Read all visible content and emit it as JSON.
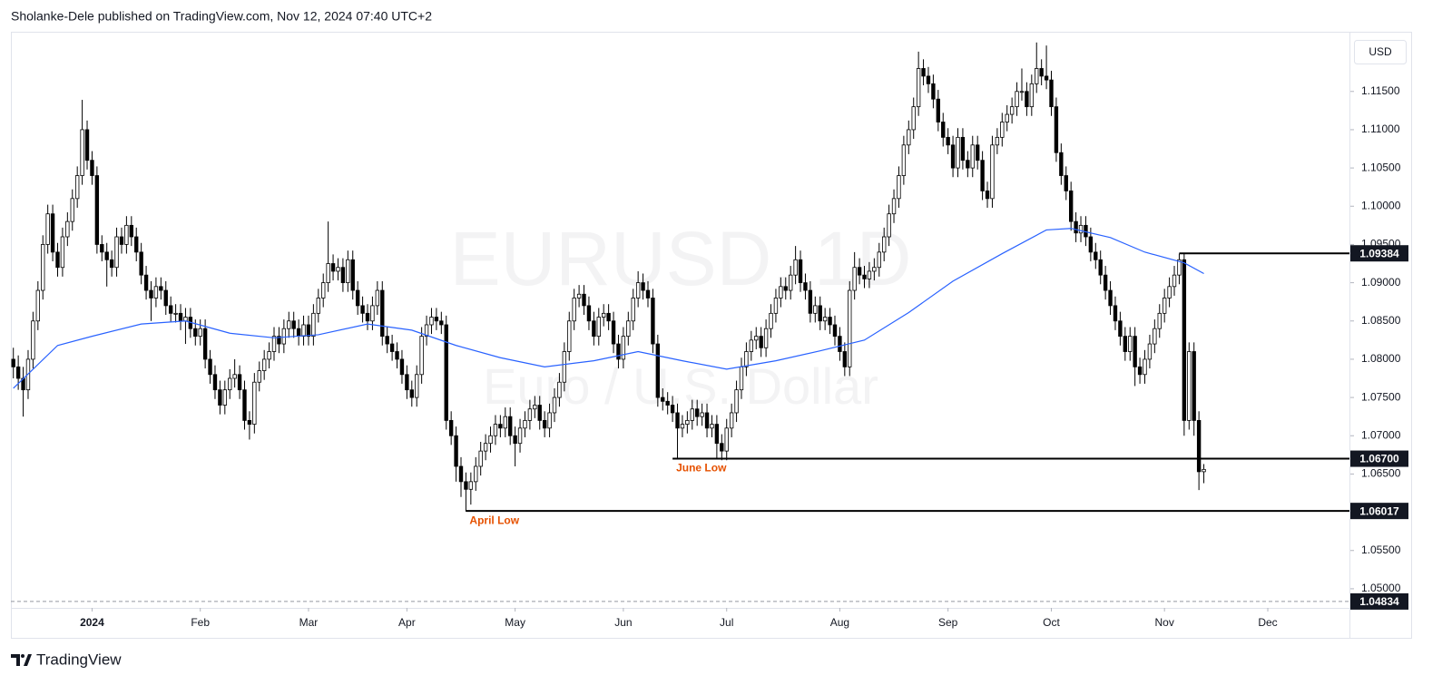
{
  "header": "Sholanke-Dele published on TradingView.com, Nov 12, 2024 07:40 UTC+2",
  "brand": "TradingView",
  "chart_data": {
    "type": "candlestick",
    "title": "EURUSD, 1D",
    "subtitle": "Euro / U.S. Dollar",
    "currency": "USD",
    "up_color": "#ffffff",
    "down_color": "#000000",
    "edge_color": "#000000",
    "xlim": [
      -0.5,
      271.6
    ],
    "xticks": [
      {
        "value": 16,
        "label": "2024"
      },
      {
        "value": 38,
        "label": "Feb"
      },
      {
        "value": 60,
        "label": "Mar"
      },
      {
        "value": 80,
        "label": "Apr"
      },
      {
        "value": 102,
        "label": "May"
      },
      {
        "value": 124,
        "label": "Jun"
      },
      {
        "value": 145,
        "label": "Jul"
      },
      {
        "value": 168,
        "label": "Aug"
      },
      {
        "value": 190,
        "label": "Sep"
      },
      {
        "value": 211,
        "label": "Oct"
      },
      {
        "value": 234,
        "label": "Nov"
      },
      {
        "value": 255,
        "label": "Dec"
      }
    ],
    "ylim": [
      1.0475,
      1.1228
    ],
    "yticks": [
      {
        "value": 1.115,
        "label": "1.11500"
      },
      {
        "value": 1.11,
        "label": "1.11000"
      },
      {
        "value": 1.105,
        "label": "1.10500"
      },
      {
        "value": 1.1,
        "label": "1.10000"
      },
      {
        "value": 1.095,
        "label": "1.09500"
      },
      {
        "value": 1.09,
        "label": "1.09000"
      },
      {
        "value": 1.085,
        "label": "1.08500"
      },
      {
        "value": 1.08,
        "label": "1.08000"
      },
      {
        "value": 1.075,
        "label": "1.07500"
      },
      {
        "value": 1.07,
        "label": "1.07000"
      },
      {
        "value": 1.065,
        "label": "1.06500"
      },
      {
        "value": 1.055,
        "label": "1.05500"
      },
      {
        "value": 1.05,
        "label": "1.05000"
      }
    ],
    "open": [
      1.08,
      1.079,
      1.0775,
      1.076,
      1.08,
      1.085,
      1.089,
      1.095,
      1.099,
      1.094,
      1.092,
      1.096,
      1.098,
      1.101,
      1.104,
      1.11,
      1.106,
      1.104,
      1.095,
      1.094,
      1.093,
      1.092,
      1.096,
      1.095,
      1.0975,
      1.096,
      1.094,
      1.091,
      1.089,
      1.088,
      1.0895,
      1.089,
      1.087,
      1.086,
      1.086,
      1.085,
      1.0855,
      1.084,
      1.083,
      1.084,
      1.08,
      1.078,
      1.076,
      1.074,
      1.076,
      1.0775,
      1.078,
      1.076,
      1.072,
      1.0715,
      1.077,
      1.0785,
      1.08,
      1.081,
      1.083,
      1.082,
      1.084,
      1.085,
      1.084,
      1.083,
      1.0845,
      1.083,
      1.086,
      1.088,
      1.09,
      1.0925,
      1.0915,
      1.092,
      1.09,
      1.093,
      1.089,
      1.087,
      1.086,
      1.085,
      1.087,
      1.089,
      1.083,
      1.082,
      1.081,
      1.08,
      1.078,
      1.076,
      1.075,
      1.078,
      1.083,
      1.0845,
      1.0855,
      1.085,
      1.0845,
      1.072,
      1.07,
      1.066,
      1.064,
      1.063,
      1.064,
      1.066,
      1.068,
      1.069,
      1.07,
      1.0715,
      1.071,
      1.0725,
      1.07,
      1.069,
      1.071,
      1.072,
      1.0735,
      1.074,
      1.072,
      1.071,
      1.073,
      1.075,
      1.077,
      1.081,
      1.085,
      1.088,
      1.0885,
      1.087,
      1.085,
      1.083,
      1.0855,
      1.086,
      1.085,
      1.082,
      1.08,
      1.083,
      1.085,
      1.088,
      1.09,
      1.089,
      1.088,
      1.082,
      1.075,
      1.0745,
      1.074,
      1.073,
      1.071,
      1.0715,
      1.072,
      1.0735,
      1.0725,
      1.073,
      1.071,
      1.0715,
      1.069,
      1.068,
      1.071,
      1.073,
      1.076,
      1.079,
      1.081,
      1.0825,
      1.083,
      1.0815,
      1.084,
      1.086,
      1.088,
      1.0895,
      1.089,
      1.091,
      1.093,
      1.09,
      1.089,
      1.086,
      1.087,
      1.085,
      1.0855,
      1.0845,
      1.083,
      1.081,
      1.079,
      1.089,
      1.092,
      1.091,
      1.0905,
      1.0915,
      1.092,
      1.094,
      1.096,
      1.099,
      1.101,
      1.104,
      1.108,
      1.11,
      1.113,
      1.118,
      1.117,
      1.116,
      1.114,
      1.111,
      1.109,
      1.108,
      1.105,
      1.109,
      1.106,
      1.105,
      1.108,
      1.106,
      1.102,
      1.101,
      1.108,
      1.109,
      1.111,
      1.112,
      1.113,
      1.115,
      1.115,
      1.113,
      1.116,
      1.118,
      1.117,
      1.1165,
      1.113,
      1.107,
      1.104,
      1.102,
      1.098,
      1.0965,
      1.0975,
      1.096,
      1.094,
      1.093,
      1.091,
      1.089,
      1.087,
      1.085,
      1.083,
      1.081,
      1.083,
      1.079,
      1.078,
      1.08,
      1.082,
      1.084,
      1.086,
      1.088,
      1.0895,
      1.091,
      1.093,
      1.072,
      1.081,
      1.072,
      1.0653
    ],
    "high": [
      1.0815,
      1.0805,
      1.079,
      1.0812,
      1.0862,
      1.0902,
      1.0962,
      1.1002,
      1.1002,
      1.0952,
      1.0972,
      1.0992,
      1.1022,
      1.1052,
      1.1139,
      1.1112,
      1.1072,
      1.1052,
      1.0962,
      1.0952,
      1.0942,
      1.0972,
      1.0972,
      1.0987,
      1.0987,
      1.0972,
      1.0952,
      1.0922,
      1.0902,
      1.0907,
      1.0907,
      1.0902,
      1.0882,
      1.0872,
      1.0872,
      1.0867,
      1.0867,
      1.0852,
      1.0852,
      1.0852,
      1.0812,
      1.0792,
      1.0772,
      1.0772,
      1.0787,
      1.08,
      1.0792,
      1.0772,
      1.0732,
      1.0782,
      1.0797,
      1.0812,
      1.0822,
      1.0842,
      1.0842,
      1.0852,
      1.0862,
      1.0862,
      1.0852,
      1.0857,
      1.0857,
      1.0872,
      1.0892,
      1.0912,
      1.098,
      1.0937,
      1.0932,
      1.0932,
      1.0942,
      1.0942,
      1.0902,
      1.0882,
      1.0872,
      1.0882,
      1.0902,
      1.0902,
      1.0842,
      1.0832,
      1.0822,
      1.0812,
      1.0792,
      1.0772,
      1.0792,
      1.0842,
      1.0857,
      1.0867,
      1.0867,
      1.0862,
      1.0857,
      1.0732,
      1.0712,
      1.0672,
      1.0652,
      1.0652,
      1.0672,
      1.0692,
      1.0702,
      1.0712,
      1.0727,
      1.0727,
      1.0737,
      1.0737,
      1.0712,
      1.0722,
      1.0732,
      1.0747,
      1.0752,
      1.0752,
      1.0732,
      1.0742,
      1.0762,
      1.0782,
      1.0822,
      1.0862,
      1.0892,
      1.0897,
      1.0897,
      1.0882,
      1.0862,
      1.0867,
      1.0872,
      1.0872,
      1.0862,
      1.0832,
      1.0842,
      1.0862,
      1.0892,
      1.0915,
      1.0912,
      1.0902,
      1.0892,
      1.0832,
      1.0762,
      1.0757,
      1.0752,
      1.0742,
      1.0727,
      1.0732,
      1.0747,
      1.0747,
      1.0742,
      1.0742,
      1.0727,
      1.0727,
      1.0702,
      1.0722,
      1.0742,
      1.0772,
      1.0802,
      1.0822,
      1.0837,
      1.0842,
      1.0842,
      1.0852,
      1.0872,
      1.0892,
      1.0907,
      1.0907,
      1.0922,
      1.0948,
      1.0942,
      1.0912,
      1.0902,
      1.0882,
      1.0882,
      1.0867,
      1.0867,
      1.0857,
      1.0842,
      1.0822,
      1.0902,
      1.094,
      1.0932,
      1.0922,
      1.0927,
      1.0932,
      1.0952,
      1.0972,
      1.1002,
      1.1022,
      1.1052,
      1.1092,
      1.1112,
      1.1142,
      1.1202,
      1.1192,
      1.1182,
      1.1172,
      1.1152,
      1.1122,
      1.1102,
      1.1092,
      1.1102,
      1.1102,
      1.1072,
      1.1092,
      1.1092,
      1.1072,
      1.1032,
      1.1092,
      1.1102,
      1.1122,
      1.1132,
      1.1142,
      1.1162,
      1.118,
      1.1162,
      1.1172,
      1.1214,
      1.1192,
      1.121,
      1.1177,
      1.1142,
      1.1082,
      1.1052,
      1.1032,
      1.0992,
      1.0987,
      1.0987,
      1.0972,
      1.0952,
      1.0942,
      1.0922,
      1.0902,
      1.0882,
      1.0862,
      1.0842,
      1.0842,
      1.0842,
      1.0802,
      1.0812,
      1.0832,
      1.0852,
      1.0872,
      1.0892,
      1.0907,
      1.0922,
      1.0938,
      1.0938,
      1.0822,
      1.0822,
      1.0732,
      1.0663
    ],
    "low": [
      1.0775,
      1.076,
      1.0725,
      1.0748,
      1.0788,
      1.0838,
      1.0878,
      1.0938,
      1.0928,
      1.0908,
      1.0908,
      1.0948,
      1.0968,
      1.0998,
      1.1028,
      1.1048,
      1.1028,
      1.0938,
      1.0928,
      1.0895,
      1.0908,
      1.0908,
      1.0938,
      1.0938,
      1.0948,
      1.0928,
      1.0898,
      1.0878,
      1.085,
      1.0868,
      1.0878,
      1.0858,
      1.0848,
      1.0848,
      1.0838,
      1.082,
      1.0828,
      1.0818,
      1.0818,
      1.0788,
      1.0768,
      1.0748,
      1.0728,
      1.0728,
      1.0748,
      1.0763,
      1.0748,
      1.0708,
      1.0695,
      1.0703,
      1.0758,
      1.0773,
      1.0788,
      1.0798,
      1.0808,
      1.0808,
      1.0828,
      1.0828,
      1.0818,
      1.0818,
      1.0818,
      1.0818,
      1.0848,
      1.0868,
      1.0888,
      1.0903,
      1.0903,
      1.0888,
      1.0888,
      1.0878,
      1.0858,
      1.0848,
      1.0838,
      1.0838,
      1.0858,
      1.0818,
      1.0808,
      1.0798,
      1.0788,
      1.0768,
      1.0748,
      1.0738,
      1.0738,
      1.0768,
      1.0818,
      1.0833,
      1.0838,
      1.0833,
      1.0708,
      1.0688,
      1.064,
      1.062,
      1.0601,
      1.061,
      1.0628,
      1.0648,
      1.0668,
      1.0678,
      1.0688,
      1.0698,
      1.0698,
      1.0688,
      1.066,
      1.0678,
      1.0698,
      1.0708,
      1.0723,
      1.0708,
      1.0698,
      1.0698,
      1.0718,
      1.0738,
      1.0758,
      1.0798,
      1.0838,
      1.0868,
      1.0858,
      1.0838,
      1.0818,
      1.0818,
      1.0843,
      1.0838,
      1.0808,
      1.0788,
      1.0788,
      1.0818,
      1.0838,
      1.0868,
      1.0878,
      1.0868,
      1.0808,
      1.0738,
      1.0733,
      1.0728,
      1.0718,
      1.067,
      1.0698,
      1.0703,
      1.0708,
      1.0713,
      1.0713,
      1.0698,
      1.0698,
      1.067,
      1.0668,
      1.0668,
      1.0698,
      1.0718,
      1.0748,
      1.0778,
      1.0798,
      1.0813,
      1.0803,
      1.0803,
      1.0828,
      1.0848,
      1.0868,
      1.0878,
      1.0878,
      1.0898,
      1.0888,
      1.0878,
      1.0848,
      1.0848,
      1.0838,
      1.0838,
      1.0833,
      1.0818,
      1.0798,
      1.0778,
      1.0778,
      1.0878,
      1.0898,
      1.0893,
      1.0893,
      1.0903,
      1.0908,
      1.0928,
      1.0948,
      1.0978,
      1.0998,
      1.1028,
      1.1068,
      1.1088,
      1.1118,
      1.1158,
      1.1148,
      1.1128,
      1.1098,
      1.1078,
      1.1068,
      1.1038,
      1.1038,
      1.1048,
      1.1038,
      1.1038,
      1.1048,
      1.1008,
      1.0998,
      1.0998,
      1.1068,
      1.1078,
      1.1098,
      1.1108,
      1.1118,
      1.1138,
      1.1118,
      1.1118,
      1.1148,
      1.1158,
      1.1153,
      1.1118,
      1.1058,
      1.1028,
      1.1008,
      1.0968,
      1.0953,
      1.0953,
      1.0948,
      1.0928,
      1.0918,
      1.0898,
      1.0878,
      1.0858,
      1.0838,
      1.0818,
      1.0798,
      1.0798,
      1.0765,
      1.0768,
      1.0768,
      1.0788,
      1.0808,
      1.0828,
      1.0848,
      1.0868,
      1.0883,
      1.0898,
      1.07,
      1.0708,
      1.07,
      1.0629,
      1.0638
    ],
    "close": [
      1.079,
      1.0775,
      1.076,
      1.08,
      1.085,
      1.089,
      1.095,
      1.099,
      1.094,
      1.092,
      1.096,
      1.098,
      1.101,
      1.104,
      1.11,
      1.106,
      1.104,
      1.095,
      1.094,
      1.093,
      1.092,
      1.096,
      1.095,
      1.0975,
      1.096,
      1.094,
      1.091,
      1.089,
      1.088,
      1.0895,
      1.089,
      1.087,
      1.086,
      1.086,
      1.085,
      1.0855,
      1.084,
      1.083,
      1.084,
      1.08,
      1.078,
      1.076,
      1.074,
      1.076,
      1.0775,
      1.078,
      1.076,
      1.072,
      1.0715,
      1.077,
      1.0785,
      1.08,
      1.081,
      1.083,
      1.082,
      1.084,
      1.085,
      1.084,
      1.083,
      1.0845,
      1.083,
      1.086,
      1.088,
      1.09,
      1.0925,
      1.0915,
      1.092,
      1.09,
      1.093,
      1.089,
      1.087,
      1.086,
      1.085,
      1.087,
      1.089,
      1.083,
      1.082,
      1.081,
      1.08,
      1.078,
      1.076,
      1.075,
      1.078,
      1.083,
      1.0845,
      1.0855,
      1.085,
      1.0845,
      1.072,
      1.07,
      1.066,
      1.064,
      1.063,
      1.064,
      1.066,
      1.068,
      1.069,
      1.07,
      1.0715,
      1.071,
      1.0725,
      1.07,
      1.069,
      1.071,
      1.072,
      1.0735,
      1.074,
      1.072,
      1.071,
      1.073,
      1.075,
      1.077,
      1.081,
      1.085,
      1.088,
      1.0885,
      1.087,
      1.085,
      1.083,
      1.0855,
      1.086,
      1.085,
      1.082,
      1.08,
      1.083,
      1.085,
      1.088,
      1.09,
      1.089,
      1.088,
      1.082,
      1.075,
      1.0745,
      1.074,
      1.073,
      1.071,
      1.0715,
      1.072,
      1.0735,
      1.0725,
      1.073,
      1.071,
      1.0715,
      1.069,
      1.068,
      1.071,
      1.073,
      1.076,
      1.079,
      1.081,
      1.0825,
      1.083,
      1.0815,
      1.084,
      1.086,
      1.088,
      1.0895,
      1.089,
      1.091,
      1.093,
      1.09,
      1.089,
      1.086,
      1.087,
      1.085,
      1.0855,
      1.0845,
      1.083,
      1.081,
      1.079,
      1.089,
      1.092,
      1.091,
      1.0905,
      1.0915,
      1.092,
      1.094,
      1.096,
      1.099,
      1.101,
      1.104,
      1.108,
      1.11,
      1.113,
      1.118,
      1.117,
      1.116,
      1.114,
      1.111,
      1.109,
      1.108,
      1.105,
      1.109,
      1.106,
      1.105,
      1.108,
      1.106,
      1.102,
      1.101,
      1.108,
      1.109,
      1.111,
      1.112,
      1.113,
      1.115,
      1.115,
      1.113,
      1.116,
      1.118,
      1.117,
      1.1165,
      1.113,
      1.107,
      1.104,
      1.102,
      1.098,
      1.0965,
      1.0975,
      1.096,
      1.094,
      1.093,
      1.091,
      1.089,
      1.087,
      1.085,
      1.083,
      1.081,
      1.083,
      1.079,
      1.078,
      1.08,
      1.082,
      1.084,
      1.086,
      1.088,
      1.0895,
      1.091,
      1.093,
      1.072,
      1.081,
      1.072,
      1.0653,
      1.0656
    ],
    "indicator": {
      "color": "#2962ff",
      "x": [
        0,
        9,
        16,
        26,
        35,
        44,
        53,
        62,
        72,
        81,
        90,
        99,
        108,
        118,
        127,
        136,
        145,
        155,
        164,
        173,
        182,
        191,
        201,
        210,
        215,
        223,
        230,
        238,
        242
      ],
      "values": [
        1.0762,
        1.0818,
        1.083,
        1.0846,
        1.085,
        1.0834,
        1.0828,
        1.0832,
        1.0846,
        1.0838,
        1.0818,
        1.0802,
        1.079,
        1.0798,
        1.081,
        1.0798,
        1.0787,
        1.0798,
        1.0811,
        1.0825,
        1.0861,
        1.0902,
        1.0938,
        1.0969,
        1.0971,
        1.0959,
        1.094,
        1.0926,
        1.0912
      ]
    },
    "levels": [
      {
        "value": 1.09384,
        "label": "1.09384",
        "start": 237
      },
      {
        "value": 1.067,
        "label": "1.06700",
        "start": 134,
        "text": "June Low"
      },
      {
        "value": 1.06017,
        "label": "1.06017",
        "start": 92,
        "text": "April Low"
      },
      {
        "value": 1.04834,
        "label": "1.04834",
        "style": "dashed"
      }
    ],
    "level_color": "#000000",
    "level_text_color": "#e65100"
  }
}
